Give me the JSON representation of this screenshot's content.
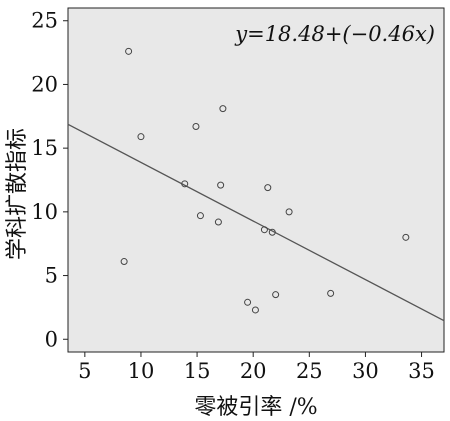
{
  "chart_data": {
    "type": "scatter",
    "title": "",
    "xlabel": "零被引率 /%",
    "ylabel": "学科扩散指标",
    "xlim": [
      3.5,
      37
    ],
    "ylim": [
      -1,
      26
    ],
    "xticks": [
      5,
      10,
      15,
      20,
      25,
      30,
      35
    ],
    "yticks": [
      0,
      5,
      10,
      15,
      20,
      25
    ],
    "grid": false,
    "background": "#e8e8e8",
    "marker_color": "#444444",
    "line_color": "#555555",
    "points": [
      {
        "x": 8.9,
        "y": 22.6
      },
      {
        "x": 10.0,
        "y": 15.9
      },
      {
        "x": 8.5,
        "y": 6.1
      },
      {
        "x": 13.9,
        "y": 12.2
      },
      {
        "x": 14.9,
        "y": 16.7
      },
      {
        "x": 15.3,
        "y": 9.7
      },
      {
        "x": 16.9,
        "y": 9.2
      },
      {
        "x": 17.1,
        "y": 12.1
      },
      {
        "x": 17.3,
        "y": 18.1
      },
      {
        "x": 19.5,
        "y": 2.9
      },
      {
        "x": 20.2,
        "y": 2.3
      },
      {
        "x": 21.0,
        "y": 8.6
      },
      {
        "x": 21.3,
        "y": 11.9
      },
      {
        "x": 21.7,
        "y": 8.4
      },
      {
        "x": 22.0,
        "y": 3.5
      },
      {
        "x": 23.2,
        "y": 10.0
      },
      {
        "x": 26.9,
        "y": 3.6
      },
      {
        "x": 33.6,
        "y": 8.0
      }
    ],
    "fit_line": {
      "intercept": 18.48,
      "slope": -0.46
    },
    "equation_label": "y=18.48+(−0.46x)"
  }
}
